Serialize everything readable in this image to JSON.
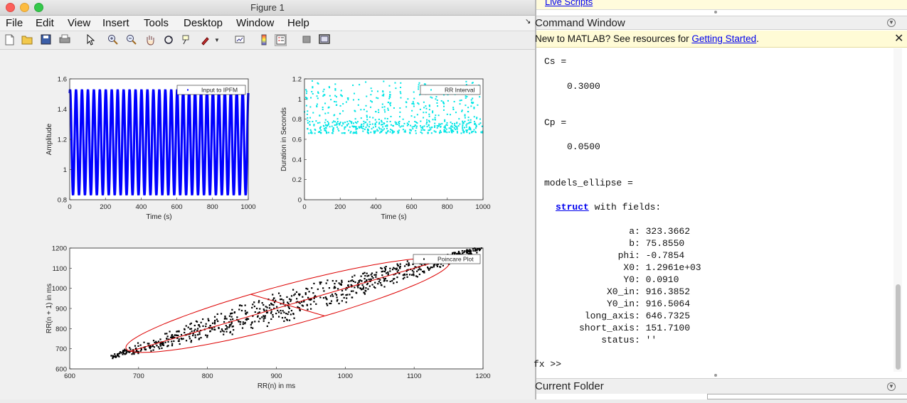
{
  "window": {
    "title": "Figure 1"
  },
  "menu": [
    "File",
    "Edit",
    "View",
    "Insert",
    "Tools",
    "Desktop",
    "Window",
    "Help"
  ],
  "toolbar_icons": [
    "new-figure-icon",
    "open-file-icon",
    "save-icon",
    "print-icon",
    "pointer-icon",
    "zoom-in-icon",
    "zoom-out-icon",
    "pan-icon",
    "rotate-icon",
    "data-cursor-icon",
    "brush-icon",
    "brush-dropdown-icon",
    "link-plot-icon",
    "insert-colorbar-icon",
    "insert-legend-icon",
    "hide-plot-tools-icon",
    "show-plot-tools-icon"
  ],
  "chart_data": [
    {
      "type": "line",
      "legend": [
        "Input to IPFM"
      ],
      "legend_position": "top-right",
      "xlabel": "Time (s)",
      "ylabel": "Amplitude",
      "xlim": [
        0,
        1000
      ],
      "ylim": [
        0.8,
        1.6
      ],
      "xticks": [
        "0",
        "200",
        "400",
        "600",
        "800",
        "1000"
      ],
      "yticks": [
        "0.8",
        "1",
        "1.2",
        "1.4",
        "1.6"
      ],
      "series": [
        {
          "name": "Input to IPFM",
          "color": "#0000ff",
          "amplitude_max": 1.53,
          "amplitude_min": 0.83,
          "cycles": 30
        }
      ]
    },
    {
      "type": "scatter",
      "legend": [
        "RR Interval"
      ],
      "legend_position": "top-right",
      "xlabel": "Time (s)",
      "ylabel": "Duration in Seconds",
      "xlim": [
        0,
        1000
      ],
      "ylim": [
        0,
        1.2
      ],
      "xticks": [
        "0",
        "200",
        "400",
        "600",
        "800",
        "1000"
      ],
      "yticks": [
        "0",
        "0.2",
        "0.4",
        "0.6",
        "0.8",
        "1",
        "1.2"
      ],
      "series": [
        {
          "name": "RR Interval",
          "color": "#00e5e5",
          "y_range": [
            0.66,
            1.2
          ]
        }
      ]
    },
    {
      "type": "scatter",
      "legend": [
        "Poincare Plot"
      ],
      "legend_position": "top-right",
      "xlabel": "RR(n) in ms",
      "ylabel": "RR(n + 1) in ms",
      "xlim": [
        600,
        1200
      ],
      "ylim": [
        600,
        1200
      ],
      "xticks": [
        "600",
        "700",
        "800",
        "900",
        "1000",
        "1100",
        "1200"
      ],
      "yticks": [
        "600",
        "700",
        "800",
        "900",
        "1000",
        "1100",
        "1200"
      ],
      "series": [
        {
          "name": "Poincare Plot",
          "color": "#000000",
          "x_range": [
            660,
            1200
          ],
          "y_range": [
            660,
            1190
          ]
        }
      ],
      "ellipse": {
        "color": "#dd0000",
        "center": [
          916.3852,
          916.5064
        ],
        "long_axis": 646.7325,
        "short_axis": 151.71,
        "phi": -0.7854
      }
    }
  ],
  "command_window": {
    "title": "Command Window",
    "top_strip_text": "Live Scripts",
    "info_prefix": "New to MATLAB? See resources for ",
    "info_link": "Getting Started",
    "info_suffix": ".",
    "cs_label": "Cs =",
    "cs_value": "0.3000",
    "cp_label": "Cp =",
    "cp_value": "0.0500",
    "models_label": "models_ellipse =",
    "struct_keyword": "struct",
    "struct_suffix": " with fields:",
    "fields": [
      {
        "name": "a",
        "value": "323.3662"
      },
      {
        "name": "b",
        "value": "75.8550"
      },
      {
        "name": "phi",
        "value": "-0.7854"
      },
      {
        "name": "X0",
        "value": "1.2961e+03"
      },
      {
        "name": "Y0",
        "value": "0.0910"
      },
      {
        "name": "X0_in",
        "value": "916.3852"
      },
      {
        "name": "Y0_in",
        "value": "916.5064"
      },
      {
        "name": "long_axis",
        "value": "646.7325"
      },
      {
        "name": "short_axis",
        "value": "151.7100"
      },
      {
        "name": "status",
        "value": "''"
      }
    ],
    "prompt": "fx >>"
  },
  "current_folder": {
    "title": "Current Folder"
  }
}
